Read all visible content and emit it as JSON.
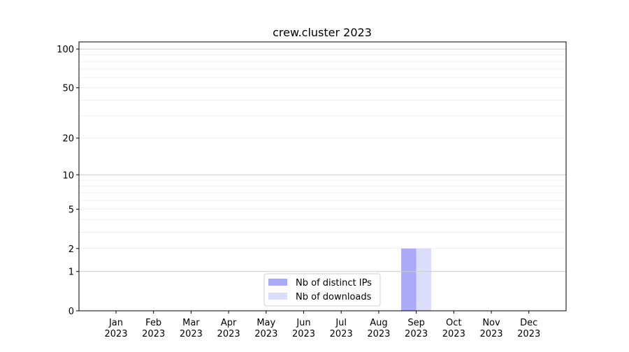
{
  "chart_data": {
    "type": "bar",
    "title": "crew.cluster 2023",
    "xlabel": "",
    "ylabel": "",
    "yscale": "symlog (log10(y+1))",
    "ylim": [
      0,
      113
    ],
    "yticks": [
      0,
      1,
      2,
      5,
      10,
      20,
      50,
      100
    ],
    "grid": true,
    "legend_position": "lower-center",
    "categories": [
      "Jan\n2023",
      "Feb\n2023",
      "Mar\n2023",
      "Apr\n2023",
      "May\n2023",
      "Jun\n2023",
      "Jul\n2023",
      "Aug\n2023",
      "Sep\n2023",
      "Oct\n2023",
      "Nov\n2023",
      "Dec\n2023"
    ],
    "series": [
      {
        "name": "Nb of distinct IPs",
        "color": "#aaaaf8",
        "values": [
          0,
          0,
          0,
          0,
          0,
          0,
          0,
          0,
          2,
          0,
          0,
          0
        ]
      },
      {
        "name": "Nb of downloads",
        "color": "#dcdcfc",
        "values": [
          0,
          0,
          0,
          0,
          0,
          0,
          0,
          0,
          2,
          0,
          0,
          0
        ]
      }
    ]
  }
}
